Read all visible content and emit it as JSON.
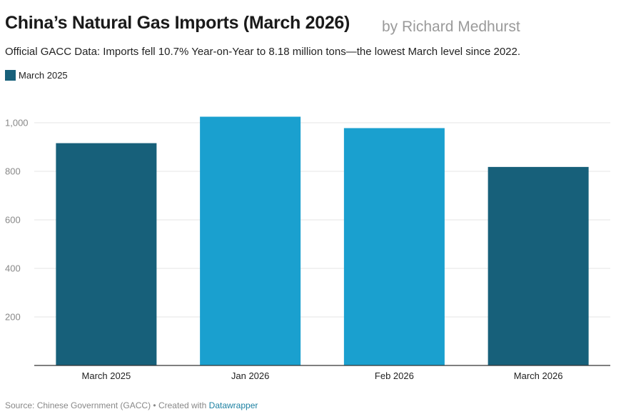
{
  "title": "China’s Natural Gas Imports (March 2026)",
  "byline": "by Richard Medhurst",
  "subtitle": "Official GACC Data: Imports fell 10.7% Year-on-Year to 8.18 million tons—the lowest March level since 2022.",
  "legend": {
    "label": "March 2025",
    "color": "#17607a"
  },
  "footer": {
    "source_text": "Source: Chinese Government (GACC) • Created with ",
    "link_text": "Datawrapper"
  },
  "colors": {
    "march": "#17607a",
    "other": "#1aa0cf",
    "grid": "#e6e6e6",
    "baseline": "#333333",
    "tick": "#888888"
  },
  "chart_data": {
    "type": "bar",
    "categories": [
      "March 2025",
      "Jan 2026",
      "Feb 2026",
      "March 2026"
    ],
    "values": [
      916,
      1025,
      978,
      818
    ],
    "colors": [
      "#17607a",
      "#1aa0cf",
      "#1aa0cf",
      "#17607a"
    ],
    "y_ticks": [
      200,
      400,
      600,
      800,
      1000
    ],
    "y_tick_labels": [
      "200",
      "400",
      "600",
      "800",
      "1,000"
    ],
    "ylim": [
      0,
      1100
    ],
    "grid": true,
    "legend_position": "top-left",
    "xlabel": "",
    "ylabel": ""
  }
}
